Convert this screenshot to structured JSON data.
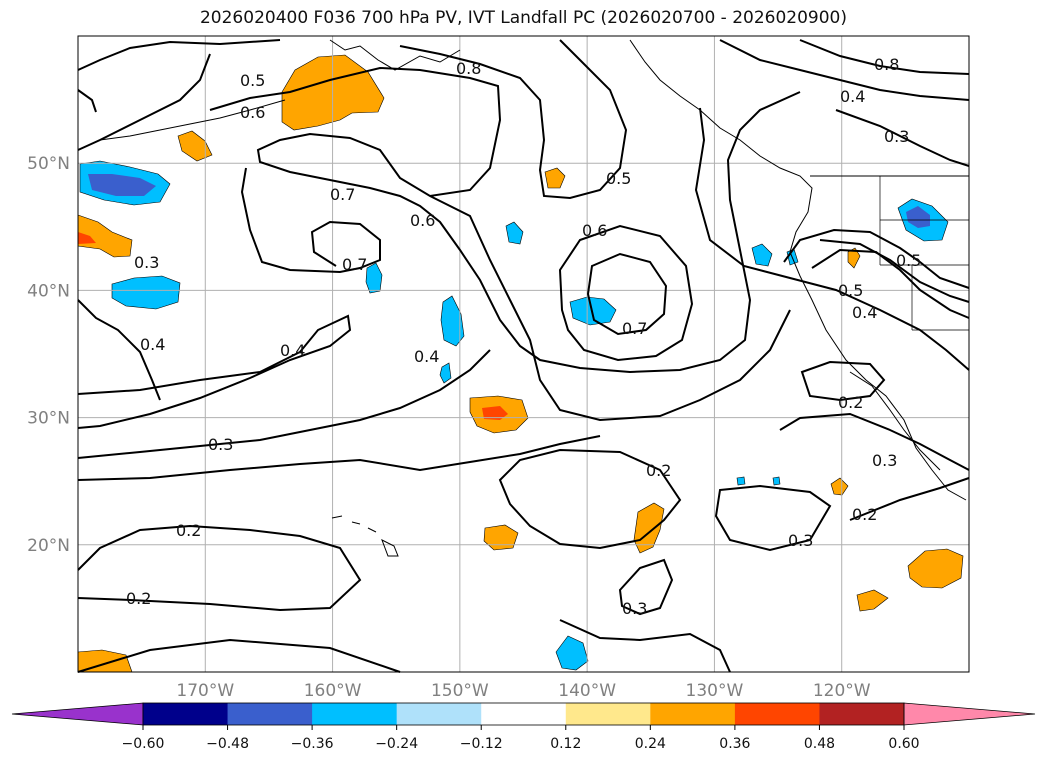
{
  "title": "2026020400 F036 700 hPa PV, IVT Landfall PC (2026020700 - 2026020900)",
  "map": {
    "lon_range": [
      -180,
      -110
    ],
    "lat_range": [
      10,
      60
    ],
    "grid_lons": [
      -170,
      -160,
      -150,
      -140,
      -130,
      -120
    ],
    "grid_lats": [
      20,
      30,
      40,
      50
    ],
    "lon_labels": [
      "170°W",
      "160°W",
      "150°W",
      "140°W",
      "130°W",
      "120°W"
    ],
    "lat_labels": [
      "20°N",
      "30°N",
      "40°N",
      "50°N"
    ]
  },
  "contour_labels": [
    "0.2",
    "0.3",
    "0.4",
    "0.5",
    "0.6",
    "0.7",
    "0.8"
  ],
  "colorbar": {
    "tick_labels": [
      "−0.60",
      "−0.48",
      "−0.36",
      "−0.24",
      "−0.12",
      "0.12",
      "0.24",
      "0.36",
      "0.48",
      "0.60"
    ],
    "under_color": "#9932cc",
    "over_color": "#ff88aa",
    "colors": [
      "#00008b",
      "#3a5fcd",
      "#00bfff",
      "#afe1fa",
      "#ffffff",
      "#ffe88c",
      "#ffa500",
      "#ff4500",
      "#b22222"
    ]
  },
  "colors": {
    "grid": "#b0b0b0",
    "contour": "#000000",
    "neg_strong": "#3a5fcd",
    "neg": "#00bfff",
    "neg_weak": "#afe1fa",
    "pos_weak": "#ffe88c",
    "pos": "#ffa500",
    "pos_strong": "#ff4500"
  }
}
